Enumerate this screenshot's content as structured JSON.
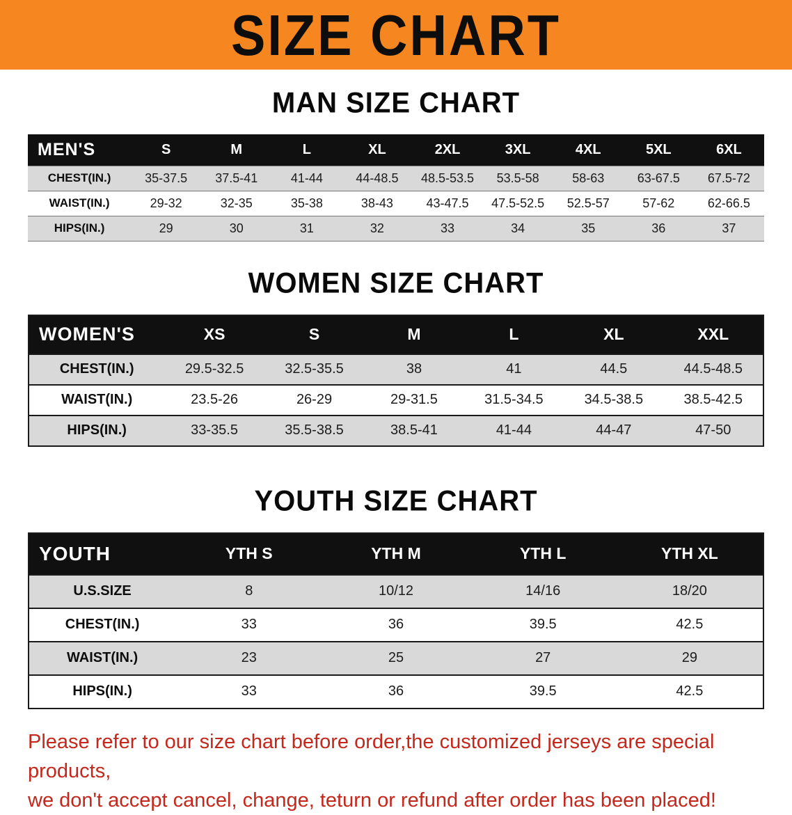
{
  "banner": {
    "title": "SIZE CHART",
    "background": "#f6861f"
  },
  "sections": [
    {
      "name": "men",
      "title": "MAN SIZE CHART",
      "corner": "MEN'S",
      "columns": [
        "S",
        "M",
        "L",
        "XL",
        "2XL",
        "3XL",
        "4XL",
        "5XL",
        "6XL"
      ],
      "rows": [
        {
          "label": "CHEST(IN.)",
          "values": [
            "35-37.5",
            "37.5-41",
            "41-44",
            "44-48.5",
            "48.5-53.5",
            "53.5-58",
            "58-63",
            "63-67.5",
            "67.5-72"
          ]
        },
        {
          "label": "WAIST(IN.)",
          "values": [
            "29-32",
            "32-35",
            "35-38",
            "38-43",
            "43-47.5",
            "47.5-52.5",
            "52.5-57",
            "57-62",
            "62-66.5"
          ]
        },
        {
          "label": "HIPS(IN.)",
          "values": [
            "29",
            "30",
            "31",
            "32",
            "33",
            "34",
            "35",
            "36",
            "37"
          ]
        }
      ]
    },
    {
      "name": "women",
      "title": "WOMEN SIZE CHART",
      "corner": "WOMEN'S",
      "columns": [
        "XS",
        "S",
        "M",
        "L",
        "XL",
        "XXL"
      ],
      "rows": [
        {
          "label": "CHEST(IN.)",
          "values": [
            "29.5-32.5",
            "32.5-35.5",
            "38",
            "41",
            "44.5",
            "44.5-48.5"
          ]
        },
        {
          "label": "WAIST(IN.)",
          "values": [
            "23.5-26",
            "26-29",
            "29-31.5",
            "31.5-34.5",
            "34.5-38.5",
            "38.5-42.5"
          ]
        },
        {
          "label": "HIPS(IN.)",
          "values": [
            "33-35.5",
            "35.5-38.5",
            "38.5-41",
            "41-44",
            "44-47",
            "47-50"
          ]
        }
      ]
    },
    {
      "name": "youth",
      "title": "YOUTH SIZE CHART",
      "corner": "YOUTH",
      "columns": [
        "YTH S",
        "YTH M",
        "YTH L",
        "YTH XL"
      ],
      "rows": [
        {
          "label": "U.S.SIZE",
          "values": [
            "8",
            "10/12",
            "14/16",
            "18/20"
          ]
        },
        {
          "label": "CHEST(IN.)",
          "values": [
            "33",
            "36",
            "39.5",
            "42.5"
          ]
        },
        {
          "label": "WAIST(IN.)",
          "values": [
            "23",
            "25",
            "27",
            "29"
          ]
        },
        {
          "label": "HIPS(IN.)",
          "values": [
            "33",
            "36",
            "39.5",
            "42.5"
          ]
        }
      ]
    }
  ],
  "note": {
    "line1": "Please refer to our size chart before order,the customized jerseys are special products,",
    "line2": "we don't accept cancel, change, teturn or refund after order has been placed!",
    "color": "#c4271c"
  }
}
